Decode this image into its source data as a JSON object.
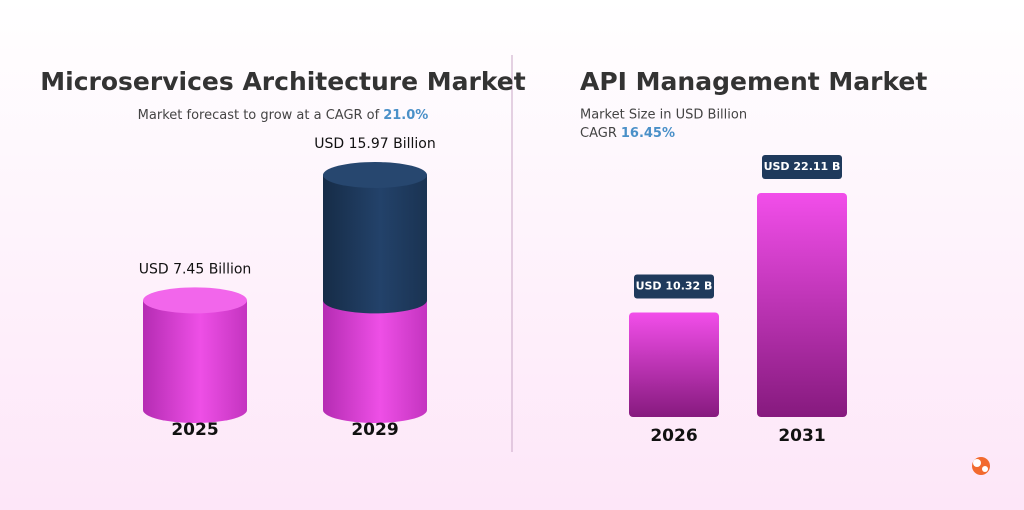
{
  "chart_data": [
    {
      "type": "cylinder",
      "title": "Microservices Architecture Market",
      "subtitle": "Market forecast to grow at a CAGR of",
      "highlight": "21.0%",
      "categories": [
        "2025",
        "2029"
      ],
      "values": [
        7.45,
        15.97
      ],
      "value_labels": [
        "USD 7.45 Billion",
        "USD 15.97 Billion"
      ],
      "color": "#e445df",
      "growth_color": "#1f3a5c"
    },
    {
      "type": "bar",
      "title": "API Management Market",
      "subtitle": "Market Size in USD Billion",
      "cagr_label": "CAGR",
      "highlight": "16.45%",
      "categories": [
        "2026",
        "2031"
      ],
      "values": [
        10.32,
        22.11
      ],
      "value_labels": [
        "USD 10.32 B",
        "USD 22.11 B"
      ],
      "color": "#e445df",
      "label_color": "#1f3a5c"
    }
  ]
}
